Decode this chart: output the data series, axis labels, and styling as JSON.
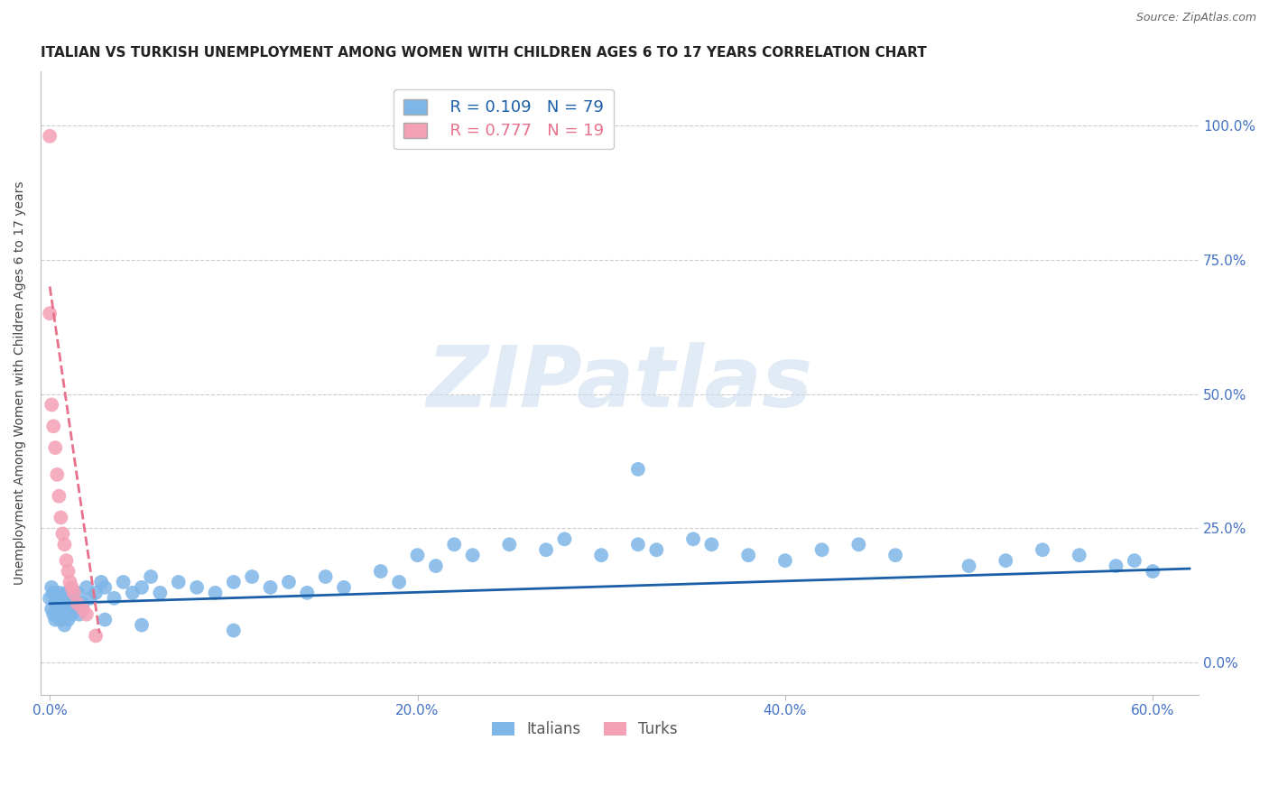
{
  "title": "ITALIAN VS TURKISH UNEMPLOYMENT AMONG WOMEN WITH CHILDREN AGES 6 TO 17 YEARS CORRELATION CHART",
  "source": "Source: ZipAtlas.com",
  "ylabel": "Unemployment Among Women with Children Ages 6 to 17 years",
  "xlim": [
    -0.005,
    0.625
  ],
  "ylim": [
    -0.06,
    1.1
  ],
  "x_tick_vals": [
    0.0,
    0.2,
    0.4,
    0.6
  ],
  "x_tick_labels": [
    "0.0%",
    "20.0%",
    "40.0%",
    "60.0%"
  ],
  "y_tick_vals": [
    0.0,
    0.25,
    0.5,
    0.75,
    1.0
  ],
  "y_tick_labels": [
    "0.0%",
    "25.0%",
    "50.0%",
    "75.0%",
    "100.0%"
  ],
  "legend_italian_R": "R = 0.109",
  "legend_italian_N": "N = 79",
  "legend_turkish_R": "R = 0.777",
  "legend_turkish_N": "N = 19",
  "italian_color": "#7EB6E8",
  "turkish_color": "#F4A0B5",
  "italian_line_color": "#1A5FA8",
  "turkish_line_color": "#E8708A",
  "tick_label_color": "#4472C4",
  "grid_color": "#CCCCCC",
  "watermark_text": "ZIPatlas",
  "watermark_color": "#C8DCEE",
  "italian_scatter_x": [
    0.0,
    0.001,
    0.001,
    0.002,
    0.002,
    0.003,
    0.003,
    0.004,
    0.004,
    0.005,
    0.005,
    0.006,
    0.006,
    0.007,
    0.007,
    0.008,
    0.008,
    0.009,
    0.009,
    0.01,
    0.01,
    0.011,
    0.012,
    0.013,
    0.014,
    0.015,
    0.016,
    0.018,
    0.02,
    0.022,
    0.025,
    0.028,
    0.03,
    0.035,
    0.04,
    0.045,
    0.05,
    0.055,
    0.06,
    0.07,
    0.08,
    0.09,
    0.1,
    0.11,
    0.12,
    0.13,
    0.14,
    0.15,
    0.16,
    0.18,
    0.19,
    0.2,
    0.21,
    0.22,
    0.23,
    0.25,
    0.27,
    0.28,
    0.3,
    0.32,
    0.33,
    0.35,
    0.36,
    0.38,
    0.4,
    0.42,
    0.44,
    0.46,
    0.5,
    0.52,
    0.54,
    0.56,
    0.58,
    0.59,
    0.6,
    0.03,
    0.05,
    0.32,
    0.1
  ],
  "italian_scatter_y": [
    0.12,
    0.1,
    0.14,
    0.09,
    0.13,
    0.11,
    0.08,
    0.1,
    0.12,
    0.09,
    0.13,
    0.08,
    0.11,
    0.1,
    0.09,
    0.12,
    0.07,
    0.11,
    0.13,
    0.1,
    0.08,
    0.12,
    0.09,
    0.11,
    0.1,
    0.13,
    0.09,
    0.11,
    0.14,
    0.12,
    0.13,
    0.15,
    0.14,
    0.12,
    0.15,
    0.13,
    0.14,
    0.16,
    0.13,
    0.15,
    0.14,
    0.13,
    0.15,
    0.16,
    0.14,
    0.15,
    0.13,
    0.16,
    0.14,
    0.17,
    0.15,
    0.2,
    0.18,
    0.22,
    0.2,
    0.22,
    0.21,
    0.23,
    0.2,
    0.22,
    0.21,
    0.23,
    0.22,
    0.2,
    0.19,
    0.21,
    0.22,
    0.2,
    0.18,
    0.19,
    0.21,
    0.2,
    0.18,
    0.19,
    0.17,
    0.08,
    0.07,
    0.36,
    0.06
  ],
  "turkish_scatter_x": [
    0.0,
    0.0,
    0.001,
    0.002,
    0.003,
    0.004,
    0.005,
    0.006,
    0.007,
    0.008,
    0.009,
    0.01,
    0.011,
    0.012,
    0.013,
    0.015,
    0.018,
    0.02,
    0.025
  ],
  "turkish_scatter_y": [
    0.98,
    0.65,
    0.48,
    0.44,
    0.4,
    0.35,
    0.31,
    0.27,
    0.24,
    0.22,
    0.19,
    0.17,
    0.15,
    0.14,
    0.13,
    0.11,
    0.1,
    0.09,
    0.05
  ],
  "italian_trend_x": [
    0.0,
    0.62
  ],
  "italian_trend_y": [
    0.11,
    0.175
  ],
  "turkish_trend_x": [
    0.0,
    0.027
  ],
  "turkish_trend_y": [
    0.7,
    0.055
  ]
}
